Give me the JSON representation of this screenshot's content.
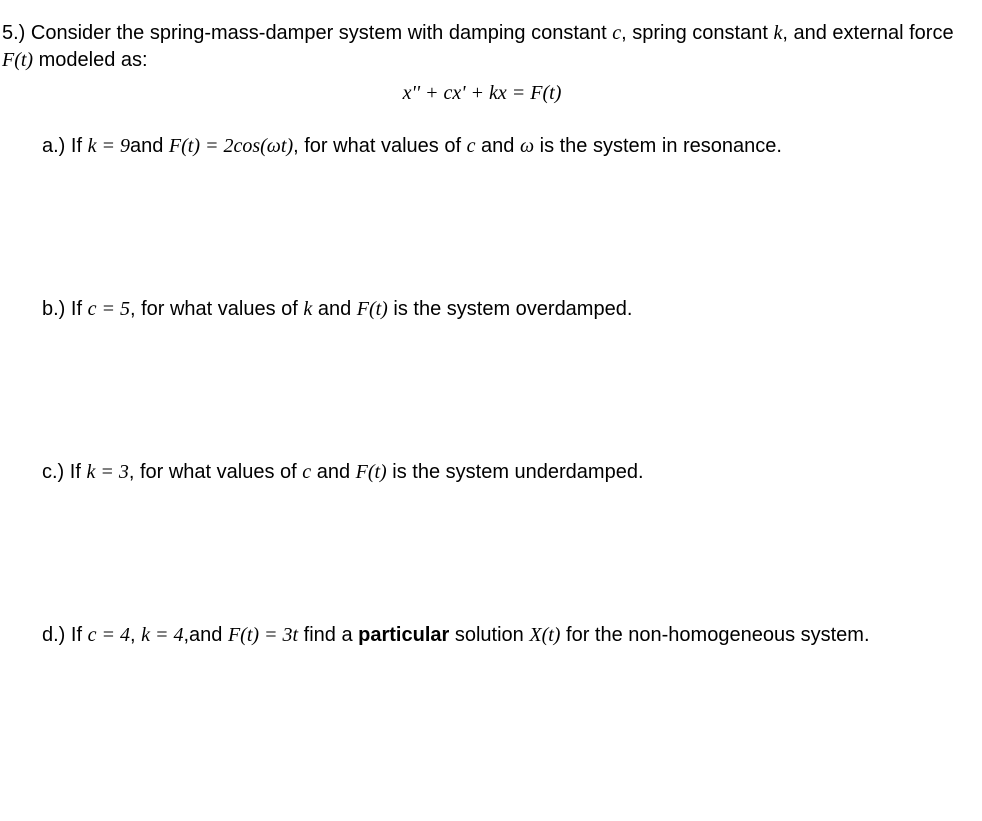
{
  "problem": {
    "number": "5.)",
    "stem_pre": "Consider the spring-mass-damper system with damping constant ",
    "c_var": "c",
    "stem_mid1": ", spring constant ",
    "k_var": "k",
    "stem_mid2": ", and external force ",
    "Ft_var": "F(t)",
    "stem_post": " modeled as:",
    "equation": "x'' + cx' + kx = F(t)"
  },
  "parts": {
    "a": {
      "label": "a.)",
      "pre": " If ",
      "cond1": "k = 9",
      "mid1": "and ",
      "cond2": "F(t) = 2cos(ωt)",
      "post1": ", for what values of ",
      "var1": "c",
      "post2": " and ",
      "var2": "ω",
      "post3": " is the system in resonance."
    },
    "b": {
      "label": "b.)",
      "pre": " If ",
      "cond1": "c = 5",
      "post1": ", for what values of ",
      "var1": "k",
      "post2": " and ",
      "var2": "F(t)",
      "post3": " is the system overdamped."
    },
    "c": {
      "label": "c.)",
      "pre": " If ",
      "cond1": "k = 3",
      "post1": ", for what values of ",
      "var1": "c",
      "post2": " and ",
      "var2": "F(t)",
      "post3": " is the system underdamped."
    },
    "d": {
      "label": "d.)",
      "pre": " If ",
      "cond1": "c = 4",
      "mid1": ", ",
      "cond2": "k = 4",
      "mid2": ",and ",
      "cond3": "F(t) = 3t",
      "post1": " find a ",
      "bold": "particular",
      "post2": " solution ",
      "var1": "X(t)",
      "post3": " for the non-homogeneous system."
    }
  }
}
